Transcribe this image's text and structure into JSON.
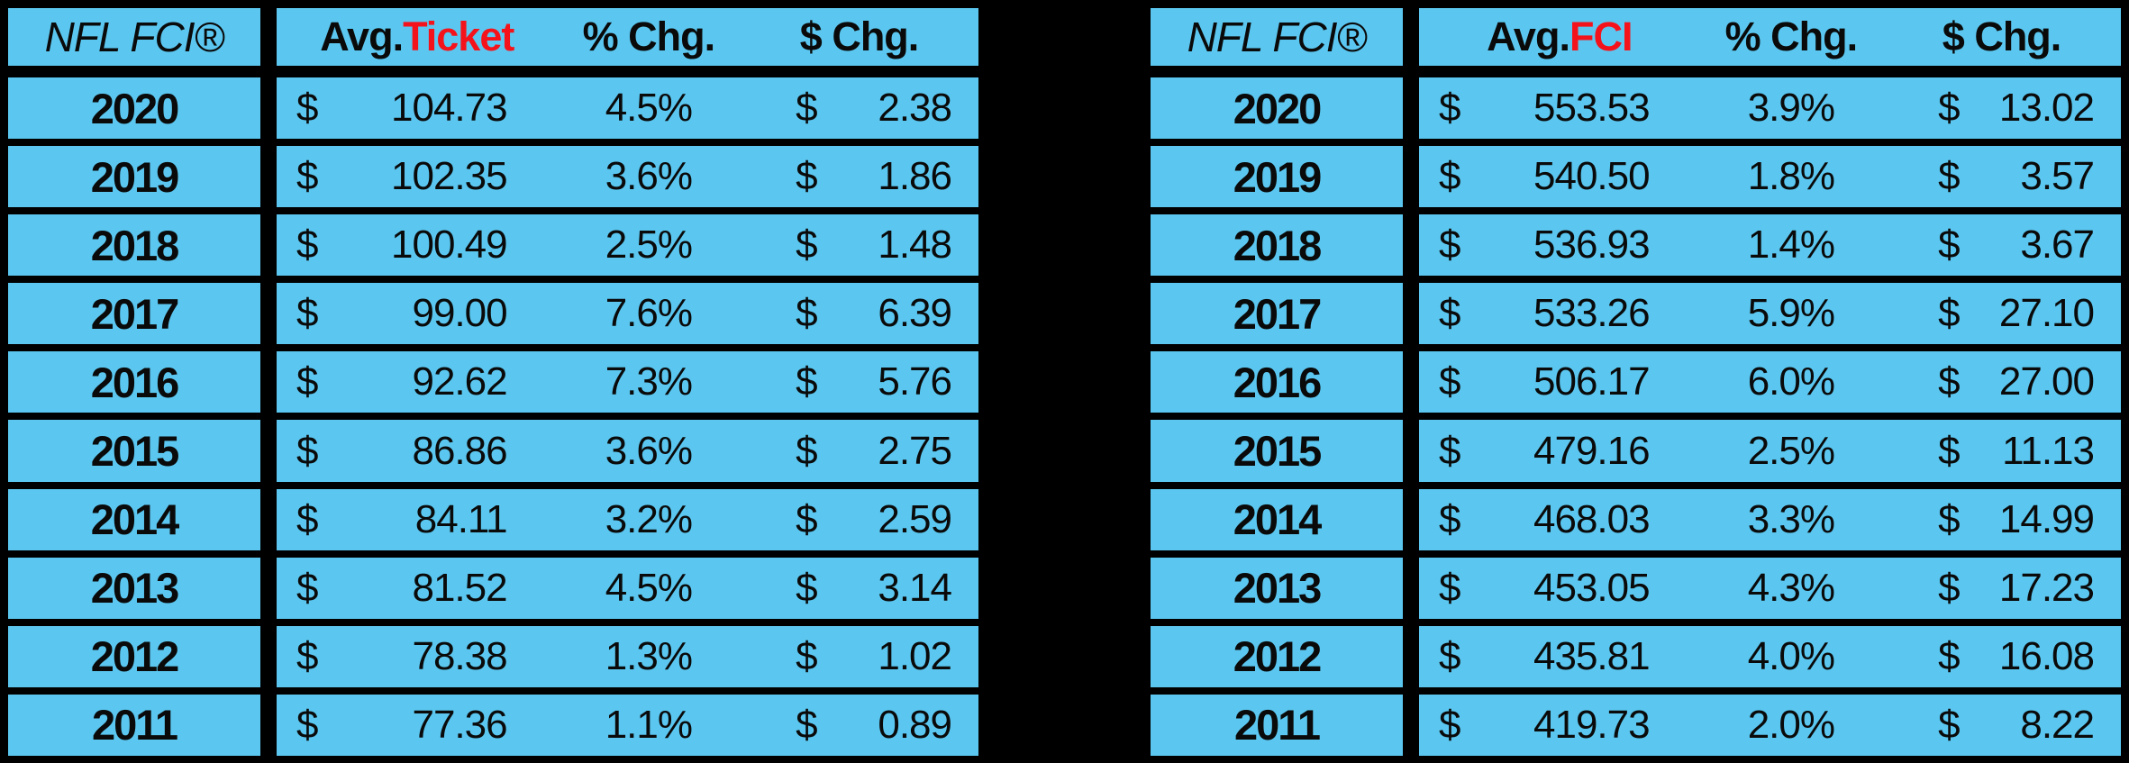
{
  "screen": {
    "background": "#000000",
    "cell_color": "#5BC7F0",
    "text_color": "#0a0a0a",
    "accent_red": "#F5131B"
  },
  "currency_symbol": "$",
  "tables": [
    {
      "name": "avg-ticket",
      "header": {
        "label": "NFL FCI®",
        "metric_prefix": "Avg.",
        "metric_highlight": "Ticket",
        "pct_chg": "% Chg.",
        "dollar_chg": "$ Chg."
      },
      "rows": [
        {
          "year": "2020",
          "avg": "104.73",
          "pct": "4.5%",
          "chg": "2.38"
        },
        {
          "year": "2019",
          "avg": "102.35",
          "pct": "3.6%",
          "chg": "1.86"
        },
        {
          "year": "2018",
          "avg": "100.49",
          "pct": "2.5%",
          "chg": "1.48"
        },
        {
          "year": "2017",
          "avg": "99.00",
          "pct": "7.6%",
          "chg": "6.39"
        },
        {
          "year": "2016",
          "avg": "92.62",
          "pct": "7.3%",
          "chg": "5.76"
        },
        {
          "year": "2015",
          "avg": "86.86",
          "pct": "3.6%",
          "chg": "2.75"
        },
        {
          "year": "2014",
          "avg": "84.11",
          "pct": "3.2%",
          "chg": "2.59"
        },
        {
          "year": "2013",
          "avg": "81.52",
          "pct": "4.5%",
          "chg": "3.14"
        },
        {
          "year": "2012",
          "avg": "78.38",
          "pct": "1.3%",
          "chg": "1.02"
        },
        {
          "year": "2011",
          "avg": "77.36",
          "pct": "1.1%",
          "chg": "0.89"
        }
      ]
    },
    {
      "name": "avg-fci",
      "header": {
        "label": "NFL FCI®",
        "metric_prefix": "Avg.",
        "metric_highlight": "FCI",
        "pct_chg": "% Chg.",
        "dollar_chg": "$ Chg."
      },
      "rows": [
        {
          "year": "2020",
          "avg": "553.53",
          "pct": "3.9%",
          "chg": "13.02"
        },
        {
          "year": "2019",
          "avg": "540.50",
          "pct": "1.8%",
          "chg": "3.57"
        },
        {
          "year": "2018",
          "avg": "536.93",
          "pct": "1.4%",
          "chg": "3.67"
        },
        {
          "year": "2017",
          "avg": "533.26",
          "pct": "5.9%",
          "chg": "27.10"
        },
        {
          "year": "2016",
          "avg": "506.17",
          "pct": "6.0%",
          "chg": "27.00"
        },
        {
          "year": "2015",
          "avg": "479.16",
          "pct": "2.5%",
          "chg": "11.13"
        },
        {
          "year": "2014",
          "avg": "468.03",
          "pct": "3.3%",
          "chg": "14.99"
        },
        {
          "year": "2013",
          "avg": "453.05",
          "pct": "4.3%",
          "chg": "17.23"
        },
        {
          "year": "2012",
          "avg": "435.81",
          "pct": "4.0%",
          "chg": "16.08"
        },
        {
          "year": "2011",
          "avg": "419.73",
          "pct": "2.0%",
          "chg": "8.22"
        }
      ]
    }
  ],
  "chart_data": [
    {
      "type": "table",
      "title": "NFL FCI® — Avg. Ticket by year",
      "columns": [
        "NFL FCI®",
        "Avg.Ticket",
        "% Chg.",
        "$ Chg."
      ],
      "years": [
        2020,
        2019,
        2018,
        2017,
        2016,
        2015,
        2014,
        2013,
        2012,
        2011
      ],
      "avg_ticket_usd": [
        104.73,
        102.35,
        100.49,
        99.0,
        92.62,
        86.86,
        84.11,
        81.52,
        78.38,
        77.36
      ],
      "pct_chg": [
        4.5,
        3.6,
        2.5,
        7.6,
        7.3,
        3.6,
        3.2,
        4.5,
        1.3,
        1.1
      ],
      "dollar_chg_usd": [
        2.38,
        1.86,
        1.48,
        6.39,
        5.76,
        2.75,
        2.59,
        3.14,
        1.02,
        0.89
      ]
    },
    {
      "type": "table",
      "title": "NFL FCI® — Avg. FCI (Fan Cost Index) by year",
      "columns": [
        "NFL FCI®",
        "Avg.FCI",
        "% Chg.",
        "$ Chg."
      ],
      "years": [
        2020,
        2019,
        2018,
        2017,
        2016,
        2015,
        2014,
        2013,
        2012,
        2011
      ],
      "avg_fci_usd": [
        553.53,
        540.5,
        536.93,
        533.26,
        506.17,
        479.16,
        468.03,
        453.05,
        435.81,
        419.73
      ],
      "pct_chg": [
        3.9,
        1.8,
        1.4,
        5.9,
        6.0,
        2.5,
        3.3,
        4.3,
        4.0,
        2.0
      ],
      "dollar_chg_usd": [
        13.02,
        3.57,
        3.67,
        27.1,
        27.0,
        11.13,
        14.99,
        17.23,
        16.08,
        8.22
      ]
    }
  ]
}
